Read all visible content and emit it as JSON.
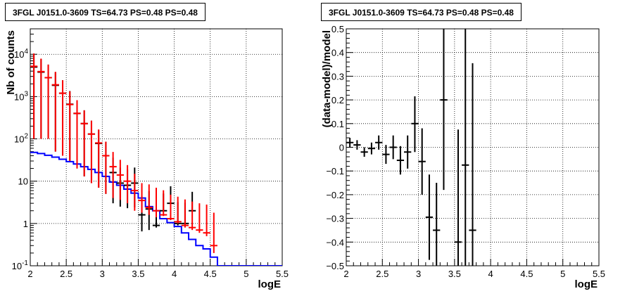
{
  "chart_data": [
    {
      "type": "line",
      "title": "3FGL J0151.0-3609 TS=64.73 PS=0.48 PS=0.48",
      "xlabel": "logE",
      "ylabel": "Nb of counts",
      "xlim": [
        2,
        5.5
      ],
      "ylim": [
        0.1,
        40000
      ],
      "yscale": "log",
      "grid": true,
      "x_ticks": [
        "2",
        "2.5",
        "3",
        "3.5",
        "4",
        "4.5",
        "5",
        "5.5"
      ],
      "y_ticks": [
        "10^{-1}",
        "1",
        "10",
        "10^{2}",
        "10^{3}",
        "10^{4}"
      ],
      "series": [
        {
          "color": "#0000ff",
          "style": "step",
          "bin_edges": [
            2.0,
            2.1,
            2.2,
            2.3,
            2.4,
            2.5,
            2.6,
            2.7,
            2.8,
            2.9,
            3.0,
            3.1,
            3.2,
            3.3,
            3.4,
            3.5,
            3.6,
            3.7,
            3.8,
            3.9,
            4.0,
            4.1,
            4.2,
            4.3,
            4.4,
            4.5,
            4.6,
            5.5
          ],
          "values": [
            48,
            45,
            41,
            37,
            33,
            29,
            25.5,
            22,
            19,
            16,
            13,
            9.5,
            8,
            6.5,
            5.2,
            4,
            2.5,
            2.0,
            1.3,
            1.05,
            0.85,
            0.6,
            0.42,
            0.3,
            0.25,
            0.16,
            0.1
          ]
        },
        {
          "color": "#000000",
          "style": "points-with-errors",
          "x": [
            2.05,
            2.15,
            2.25,
            2.35,
            2.45,
            2.55,
            2.65,
            2.75,
            2.85,
            2.95,
            3.05,
            3.15,
            3.25,
            3.35,
            3.45,
            3.55,
            3.65,
            3.75,
            3.85,
            3.95,
            4.05,
            4.15,
            4.25
          ],
          "y": [
            5000,
            3800,
            2800,
            1850,
            1200,
            660,
            400,
            230,
            130,
            78,
            40,
            16,
            9,
            8,
            9,
            1.6,
            2.2,
            0.9,
            2.0,
            3.0,
            1.0,
            1.0,
            2.0
          ],
          "y_err_low": [
            4900,
            3700,
            2700,
            1800,
            1160,
            630,
            380,
            217,
            121,
            71,
            35,
            13,
            6.5,
            5.7,
            6.6,
            0.95,
            1.5,
            0.1,
            0.1,
            0.1,
            0.1,
            0.1,
            0.1
          ],
          "y_err_high": [
            5100,
            3900,
            2900,
            1900,
            1240,
            690,
            420,
            243,
            139,
            85,
            46,
            20,
            12,
            11,
            12,
            2.9,
            3.6,
            2.0,
            3.1,
            4.6,
            2.2,
            2.1,
            3.6
          ]
        },
        {
          "color": "#ff0000",
          "style": "points-with-errors",
          "x": [
            2.05,
            2.15,
            2.25,
            2.35,
            2.45,
            2.55,
            2.65,
            2.75,
            2.85,
            2.95,
            3.05,
            3.15,
            3.25,
            3.35,
            3.45,
            3.55,
            3.65,
            3.75,
            3.85,
            3.95,
            4.05,
            4.15,
            4.25,
            4.35,
            4.45,
            4.55
          ],
          "y": [
            5200,
            3900,
            2800,
            1900,
            1200,
            650,
            400,
            230,
            130,
            80,
            40,
            22,
            14,
            10,
            6,
            3.5,
            2.4,
            2.0,
            1.6,
            1.3,
            1.1,
            0.9,
            0.8,
            0.7,
            0.6,
            0.3
          ],
          "y_err_low": [
            5100,
            3800,
            2700,
            1850,
            1160,
            620,
            380,
            217,
            121,
            73,
            35,
            18,
            10.4,
            7,
            4,
            1.7,
            0.8,
            0.6,
            0.1,
            0.1,
            0.1,
            0.1,
            0.1,
            0.1,
            0.1,
            0.1
          ],
          "y_err_high": [
            5300,
            4000,
            2900,
            1950,
            1240,
            680,
            420,
            243,
            139,
            87,
            46,
            27,
            18,
            14,
            9,
            5.5,
            6.0,
            5.0,
            4.5,
            3.5,
            3.2,
            2.8,
            2.5,
            2.3,
            2.2,
            1.5
          ]
        }
      ]
    },
    {
      "type": "scatter",
      "title": "3FGL J0151.0-3609 TS=64.73 PS=0.48 PS=0.48",
      "xlabel": "logE",
      "ylabel": "(data-model)/model",
      "xlim": [
        2,
        5.5
      ],
      "ylim": [
        -0.5,
        0.5
      ],
      "grid": true,
      "x_ticks": [
        "2",
        "2.5",
        "3",
        "3.5",
        "4",
        "4.5",
        "5",
        "5.5"
      ],
      "y_ticks": [
        "−0.5",
        "−0.4",
        "−0.3",
        "−0.2",
        "−0.1",
        "0",
        "0.1",
        "0.2",
        "0.3",
        "0.4",
        "0.5"
      ],
      "series": [
        {
          "color": "#000000",
          "x": [
            2.05,
            2.15,
            2.25,
            2.35,
            2.45,
            2.55,
            2.65,
            2.75,
            2.85,
            2.95,
            3.05,
            3.15,
            3.25,
            3.35,
            3.55,
            3.65,
            3.75
          ],
          "y": [
            0.02,
            0.01,
            -0.02,
            -0.005,
            0.02,
            -0.03,
            0.0,
            -0.055,
            -0.02,
            0.1,
            -0.06,
            -0.295,
            -0.35,
            0.2,
            -0.4,
            -0.075,
            -0.35
          ],
          "y_err_low": [
            0.02,
            0.02,
            0.02,
            0.025,
            0.03,
            0.04,
            0.05,
            0.06,
            0.07,
            0.12,
            0.14,
            0.18,
            0.2,
            0.38,
            0.2,
            0.5,
            0.2
          ],
          "y_err_high": [
            0.02,
            0.02,
            0.02,
            0.025,
            0.03,
            0.04,
            0.05,
            0.06,
            0.07,
            0.115,
            0.14,
            0.18,
            0.2,
            0.3,
            0.475,
            0.575,
            0.705
          ]
        }
      ]
    }
  ]
}
